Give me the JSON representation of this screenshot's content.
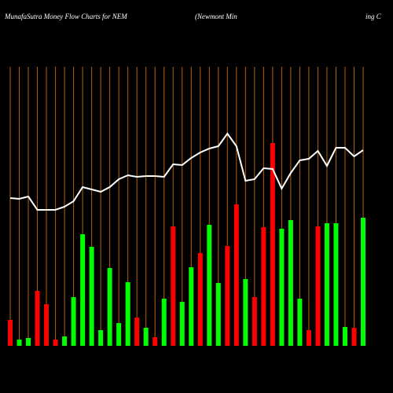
{
  "chart_data": {
    "type": "money-flow",
    "title": "MunafaSutra  Money Flow  Charts for NEM",
    "subtitle_a": "(Newmont Min",
    "subtitle_b": "ing C",
    "background": "#000000",
    "gridline_color": "#b8600b",
    "ylim": [
      0,
      360
    ],
    "series": [
      {
        "name": "Money Flow",
        "type": "bar",
        "values": [
          33,
          8,
          10,
          70,
          53,
          8,
          12,
          62,
          142,
          126,
          20,
          99,
          29,
          81,
          36,
          23,
          11,
          60,
          152,
          56,
          100,
          118,
          154,
          80,
          127,
          180,
          85,
          62,
          151,
          258,
          149,
          160,
          60,
          20,
          152,
          156,
          156,
          24,
          23,
          163
        ],
        "colors": [
          "#ff0000",
          "#00ff00",
          "#00ff00",
          "#ff0000",
          "#ff0000",
          "#ff0000",
          "#00ff00",
          "#00ff00",
          "#00ff00",
          "#00ff00",
          "#00ff00",
          "#00ff00",
          "#00ff00",
          "#00ff00",
          "#ff0000",
          "#00ff00",
          "#ff0000",
          "#00ff00",
          "#ff0000",
          "#00ff00",
          "#00ff00",
          "#ff0000",
          "#00ff00",
          "#00ff00",
          "#ff0000",
          "#ff0000",
          "#00ff00",
          "#ff0000",
          "#ff0000",
          "#ff0000",
          "#00ff00",
          "#00ff00",
          "#00ff00",
          "#ff0000",
          "#ff0000",
          "#00ff00",
          "#00ff00",
          "#00ff00",
          "#ff0000",
          "#00ff00"
        ]
      },
      {
        "name": "Price",
        "type": "line",
        "color": "#ffffff",
        "values": [
          188,
          187,
          190,
          173,
          173,
          173,
          177,
          184,
          202,
          199,
          196,
          202,
          212,
          217,
          215,
          216,
          216,
          215,
          231,
          230,
          239,
          246,
          251,
          254,
          270,
          254,
          210,
          212,
          226,
          225,
          200,
          220,
          236,
          238,
          248,
          229,
          252,
          252,
          241,
          249
        ]
      }
    ]
  }
}
